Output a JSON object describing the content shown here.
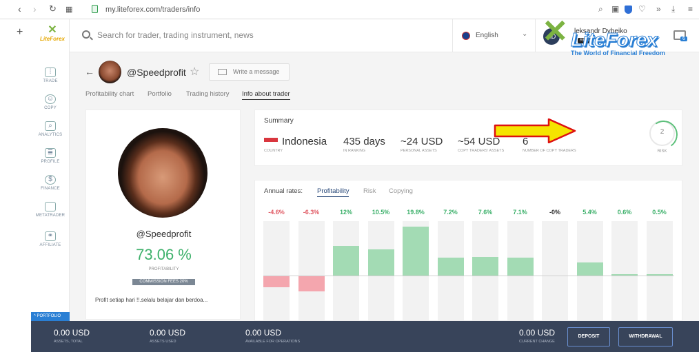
{
  "browser": {
    "url": "my.liteforex.com/traders/info"
  },
  "app": {
    "logo_text": "LiteForex",
    "search_placeholder": "Search for trader, trading instrument, news",
    "language": "English",
    "user_initials": "AD",
    "user_name": "leksandr Dybeiko",
    "user_badge": "REAL",
    "notif_count": "6"
  },
  "watermark": {
    "brand": "LiteForex",
    "tagline": "The World of Financial Freedom"
  },
  "sidebar": {
    "items": [
      {
        "label": "TRADE",
        "icon": "trade-icon"
      },
      {
        "label": "COPY",
        "icon": "copy-icon"
      },
      {
        "label": "ANALYTICS",
        "icon": "analytics-icon"
      },
      {
        "label": "PROFILE",
        "icon": "profile-icon"
      },
      {
        "label": "FINANCE",
        "icon": "finance-icon"
      },
      {
        "label": "METATRADER",
        "icon": "metatrader-icon"
      },
      {
        "label": "AFFILIATE",
        "icon": "affiliate-icon"
      }
    ],
    "portfolio_label": "PORTFOLIO"
  },
  "trader": {
    "handle": "@Speedprofit",
    "message_label": "Write a message",
    "tabs": [
      "Profitability chart",
      "Portfolio",
      "Trading history",
      "Info about trader"
    ],
    "active_tab": "Info about trader",
    "profitability": "73.06 %",
    "profitability_label": "PROFITABILITY",
    "commission": "COMMISSION FEES 20%",
    "bio": "Profit setiap hari !!.selalu belajar dan berdoa..."
  },
  "summary": {
    "title": "Summary",
    "country": "Indonesia",
    "country_label": "COUNTRY",
    "days": "435 days",
    "days_label": "IN RANKING",
    "personal_assets": "~24 USD",
    "personal_assets_label": "PERSONAL ASSETS",
    "copy_assets": "~54 USD",
    "copy_assets_label": "COPY TRADERS' ASSETS",
    "copiers": "6",
    "copiers_label": "NUMBER OF COPY TRADERS",
    "risk": "2",
    "risk_label": "RISK"
  },
  "rates": {
    "label": "Annual rates:",
    "tabs": [
      "Profitability",
      "Risk",
      "Copying"
    ],
    "active": "Profitability"
  },
  "chart_data": {
    "type": "bar",
    "values": [
      -4.6,
      -6.3,
      12,
      10.5,
      19.8,
      7.2,
      7.6,
      7.1,
      -0.0,
      5.4,
      0.6,
      0.5
    ],
    "labels": [
      "-4.6%",
      "-6.3%",
      "12%",
      "10.5%",
      "19.8%",
      "7.2%",
      "7.6%",
      "7.1%",
      "-0%",
      "5.4%",
      "0.6%",
      "0.5%"
    ],
    "positive_color": "#a3dbb4",
    "negative_color": "#f4a6ae",
    "positive_text": "#3cb06a",
    "negative_text": "#e05a64",
    "neutral_text": "#333333"
  },
  "footer": {
    "assets_total": "0.00 USD",
    "assets_total_label": "ASSETS, TOTAL",
    "assets_used": "0.00 USD",
    "assets_used_label": "ASSETS USED",
    "available": "0.00 USD",
    "available_label": "AVAILABLE FOR OPERATIONS",
    "current_change": "0.00 USD",
    "current_change_label": "CURRENT CHANGE",
    "deposit": "DEPOSIT",
    "withdrawal": "WITHDRAWAL"
  }
}
